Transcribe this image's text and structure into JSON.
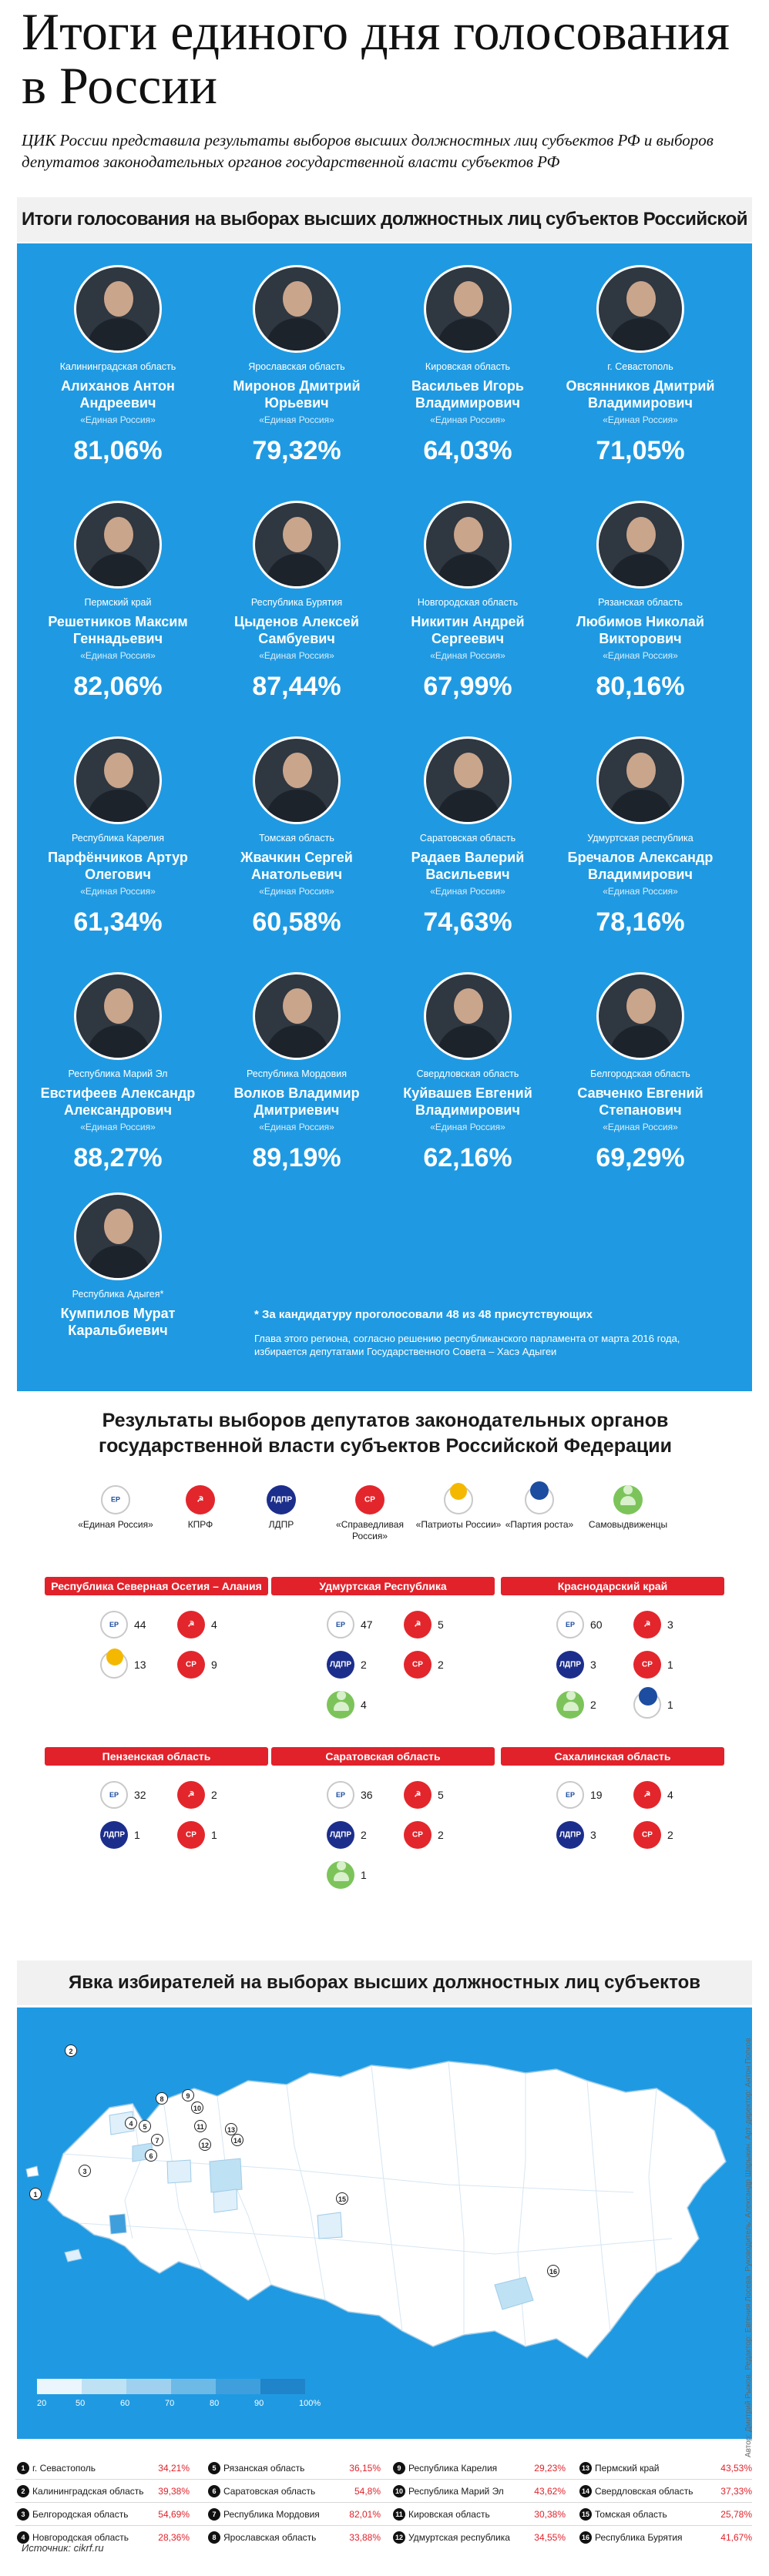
{
  "title": "Итоги единого дня голосования в России",
  "subtitle": "ЦИК России представила результаты выборов высших должностных лиц субъектов РФ и выборов депутатов законодательных органов государственной власти субъектов РФ",
  "section1_title": "Итоги голосования на выборах высших должностных лиц субъектов Российской Федерации",
  "governors": [
    {
      "region": "Калининградская область",
      "name": "Алиханов Антон Андреевич",
      "party": "«Единая Россия»",
      "pct": "81,06%"
    },
    {
      "region": "Ярославская область",
      "name": "Миронов Дмитрий Юрьевич",
      "party": "«Единая Россия»",
      "pct": "79,32%"
    },
    {
      "region": "Кировская область",
      "name": "Васильев Игорь Владимирович",
      "party": "«Единая Россия»",
      "pct": "64,03%"
    },
    {
      "region": "г. Севастополь",
      "name": "Овсянников Дмитрий Владимирович",
      "party": "«Единая Россия»",
      "pct": "71,05%"
    },
    {
      "region": "Пермский край",
      "name": "Решетников Максим Геннадьевич",
      "party": "«Единая Россия»",
      "pct": "82,06%"
    },
    {
      "region": "Республика Бурятия",
      "name": "Цыденов Алексей Самбуевич",
      "party": "«Единая Россия»",
      "pct": "87,44%"
    },
    {
      "region": "Новгородская область",
      "name": "Никитин Андрей Сергеевич",
      "party": "«Единая Россия»",
      "pct": "67,99%"
    },
    {
      "region": "Рязанская область",
      "name": "Любимов Николай Викторович",
      "party": "«Единая Россия»",
      "pct": "80,16%"
    },
    {
      "region": "Республика Карелия",
      "name": "Парфёнчиков Артур Олегович",
      "party": "«Единая Россия»",
      "pct": "61,34%"
    },
    {
      "region": "Томская область",
      "name": "Жвачкин Сергей Анатольевич",
      "party": "«Единая Россия»",
      "pct": "60,58%"
    },
    {
      "region": "Саратовская область",
      "name": "Радаев Валерий Васильевич",
      "party": "«Единая Россия»",
      "pct": "74,63%"
    },
    {
      "region": "Удмуртская республика",
      "name": "Бречалов Александр Владимирович",
      "party": "«Единая Россия»",
      "pct": "78,16%"
    },
    {
      "region": "Республика Марий Эл",
      "name": "Евстифеев Александр Александрович",
      "party": "«Единая Россия»",
      "pct": "88,27%"
    },
    {
      "region": "Республика Мордовия",
      "name": "Волков Владимир Дмитриевич",
      "party": "«Единая Россия»",
      "pct": "89,19%"
    },
    {
      "region": "Свердловская область",
      "name": "Куйвашев Евгений Владимирович",
      "party": "«Единая Россия»",
      "pct": "62,16%"
    },
    {
      "region": "Белгородская область",
      "name": "Савченко Евгений Степанович",
      "party": "«Единая Россия»",
      "pct": "69,29%"
    },
    {
      "region": "Республика Адыгея*",
      "name": "Кумпилов Мурат Каральбиевич",
      "party": "",
      "pct": ""
    }
  ],
  "adygea_note": {
    "bold": "* За кандидатуру проголосовали 48 из 48 присутствующих",
    "text": "Глава этого региона, согласно решению республиканского парламента от марта 2016 года, избирается депутатами Государственного Совета – Хасэ Адыгеи"
  },
  "section2_title": "Результаты выборов депутатов законодательных органов государственной власти субъектов Российской Федерации",
  "party_legend": [
    {
      "key": "er",
      "label": "«Единая Россия»",
      "icon": "united-russia-icon"
    },
    {
      "key": "kprf",
      "label": "КПРФ",
      "icon": "kprf-icon"
    },
    {
      "key": "ldpr",
      "label": "ЛДПР",
      "icon": "ldpr-icon"
    },
    {
      "key": "sr",
      "label": "«Справедливая Россия»",
      "icon": "fair-russia-icon"
    },
    {
      "key": "pat",
      "label": "«Патриоты России»",
      "icon": "patriots-icon"
    },
    {
      "key": "rost",
      "label": "«Партия роста»",
      "icon": "growth-party-icon"
    },
    {
      "key": "self",
      "label": "Самовыдвиженцы",
      "icon": "self-nominee-icon"
    }
  ],
  "icon_text": {
    "er": "ЕР",
    "kprf": "☭",
    "ldpr": "ЛДПР",
    "sr": "СР"
  },
  "regional_results": [
    {
      "region": "Республика Северная Осетия – Алания",
      "seats": [
        {
          "p": "er",
          "n": "44"
        },
        {
          "p": "kprf",
          "n": "4"
        },
        {
          "p": "pat",
          "n": "13"
        },
        {
          "p": "sr",
          "n": "9"
        }
      ]
    },
    {
      "region": "Удмуртская Республика",
      "seats": [
        {
          "p": "er",
          "n": "47"
        },
        {
          "p": "kprf",
          "n": "5"
        },
        {
          "p": "ldpr",
          "n": "2"
        },
        {
          "p": "sr",
          "n": "2"
        },
        {
          "p": "self",
          "n": "4"
        }
      ]
    },
    {
      "region": "Краснодарский край",
      "seats": [
        {
          "p": "er",
          "n": "60"
        },
        {
          "p": "kprf",
          "n": "3"
        },
        {
          "p": "ldpr",
          "n": "3"
        },
        {
          "p": "sr",
          "n": "1"
        },
        {
          "p": "self",
          "n": "2"
        },
        {
          "p": "rost",
          "n": "1"
        }
      ]
    },
    {
      "region": "Пензенская область",
      "seats": [
        {
          "p": "er",
          "n": "32"
        },
        {
          "p": "kprf",
          "n": "2"
        },
        {
          "p": "ldpr",
          "n": "1"
        },
        {
          "p": "sr",
          "n": "1"
        }
      ]
    },
    {
      "region": "Саратовская область",
      "seats": [
        {
          "p": "er",
          "n": "36"
        },
        {
          "p": "kprf",
          "n": "5"
        },
        {
          "p": "ldpr",
          "n": "2"
        },
        {
          "p": "sr",
          "n": "2"
        },
        {
          "p": "self",
          "n": "1"
        }
      ]
    },
    {
      "region": "Сахалинская область",
      "seats": [
        {
          "p": "er",
          "n": "19"
        },
        {
          "p": "kprf",
          "n": "4"
        },
        {
          "p": "ldpr",
          "n": "3"
        },
        {
          "p": "sr",
          "n": "2"
        }
      ]
    }
  ],
  "section3_title": "Явка избирателей на выборах высших должностных лиц субъектов Российской Федерации, %",
  "turnout_scale": {
    "labels": [
      "20",
      "50",
      "60",
      "70",
      "80",
      "90",
      "100%"
    ],
    "colors": [
      "#eaf5fc",
      "#bfe1f4",
      "#9fd1ee",
      "#6dbae6",
      "#3e9fdc",
      "#1f84c9",
      "#125e9a"
    ]
  },
  "turnout": [
    {
      "n": "1",
      "region": "г. Севастополь",
      "value": "34,21%"
    },
    {
      "n": "2",
      "region": "Калининградская область",
      "value": "39,38%"
    },
    {
      "n": "3",
      "region": "Белгородская область",
      "value": "54,69%"
    },
    {
      "n": "4",
      "region": "Новгородская область",
      "value": "28,36%"
    },
    {
      "n": "5",
      "region": "Рязанская область",
      "value": "36,15%"
    },
    {
      "n": "6",
      "region": "Саратовская область",
      "value": "54,8%"
    },
    {
      "n": "7",
      "region": "Республика Мордовия",
      "value": "82,01%"
    },
    {
      "n": "8",
      "region": "Ярославская область",
      "value": "33,88%"
    },
    {
      "n": "9",
      "region": "Республика Карелия",
      "value": "29,23%"
    },
    {
      "n": "10",
      "region": "Республика Марий Эл",
      "value": "43,62%"
    },
    {
      "n": "11",
      "region": "Кировская область",
      "value": "30,38%"
    },
    {
      "n": "12",
      "region": "Удмуртская республика",
      "value": "34,55%"
    },
    {
      "n": "13",
      "region": "Пермский край",
      "value": "43,53%"
    },
    {
      "n": "14",
      "region": "Свердловская область",
      "value": "37,33%"
    },
    {
      "n": "15",
      "region": "Томская область",
      "value": "25,78%"
    },
    {
      "n": "16",
      "region": "Республика Бурятия",
      "value": "41,67%"
    }
  ],
  "map_markers": [
    "1",
    "2",
    "3",
    "4",
    "5",
    "6",
    "7",
    "8",
    "9",
    "10",
    "11",
    "12",
    "13",
    "14",
    "15",
    "16"
  ],
  "credit": "Автор: Дмитрий Рыжов. Редактор: Евгения Лосева. Руководитель: Александр Шарыкин. Арт-директор: Антон Попков",
  "source": "Источник: cikrf.ru",
  "colors": {
    "panel": "#1f9ae2",
    "accent": "#e1222b"
  }
}
